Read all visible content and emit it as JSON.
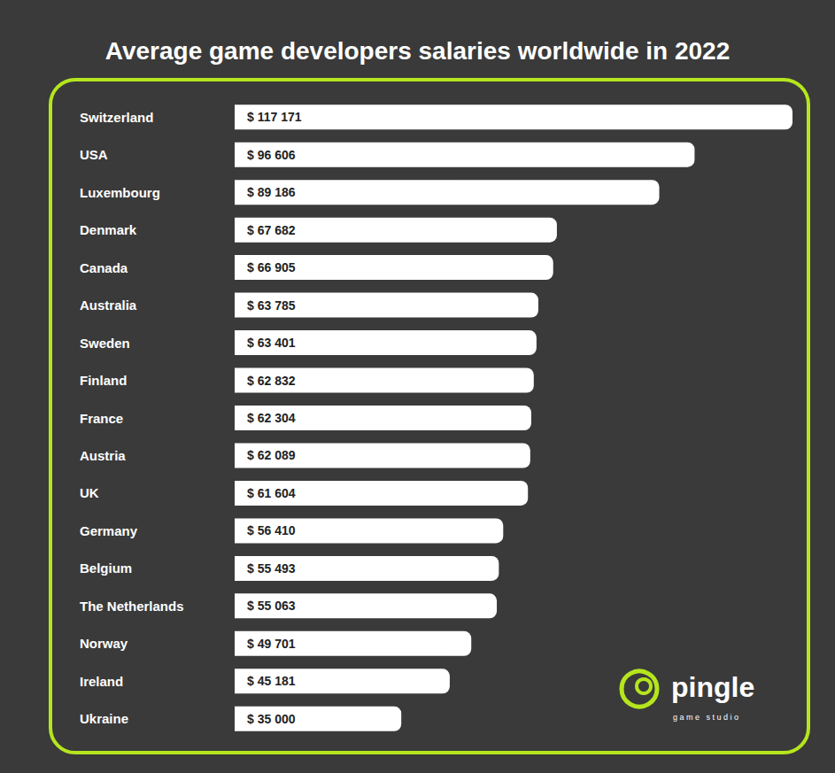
{
  "chart_data": {
    "type": "bar",
    "title": "Average game developers salaries worldwide in 2022",
    "orientation": "horizontal",
    "categories": [
      "Switzerland",
      "USA",
      "Luxembourg",
      "Denmark",
      "Canada",
      "Australia",
      "Sweden",
      "Finland",
      "France",
      "Austria",
      "UK",
      "Germany",
      "Belgium",
      "The Netherlands",
      "Norway",
      "Ireland",
      "Ukraine"
    ],
    "values": [
      117171,
      96606,
      89186,
      67682,
      66905,
      63785,
      63401,
      62832,
      62304,
      62089,
      61604,
      56410,
      55493,
      55063,
      49701,
      45181,
      35000
    ],
    "value_labels": [
      "$ 117 171",
      "$ 96 606",
      "$ 89 186",
      "$ 67 682",
      "$ 66 905",
      "$ 63 785",
      "$ 63 401",
      "$ 62 832",
      "$ 62 304",
      "$ 62 089",
      "$ 61 604",
      "$ 56 410",
      "$ 55 493",
      "$ 55 063",
      "$ 49 701",
      "$ 45 181",
      "$ 35 000"
    ],
    "color": "#ffffff",
    "data_labels": true,
    "tick_labels": "y",
    "grid": false,
    "annotations": [
      "pingle",
      "game studio"
    ]
  }
}
